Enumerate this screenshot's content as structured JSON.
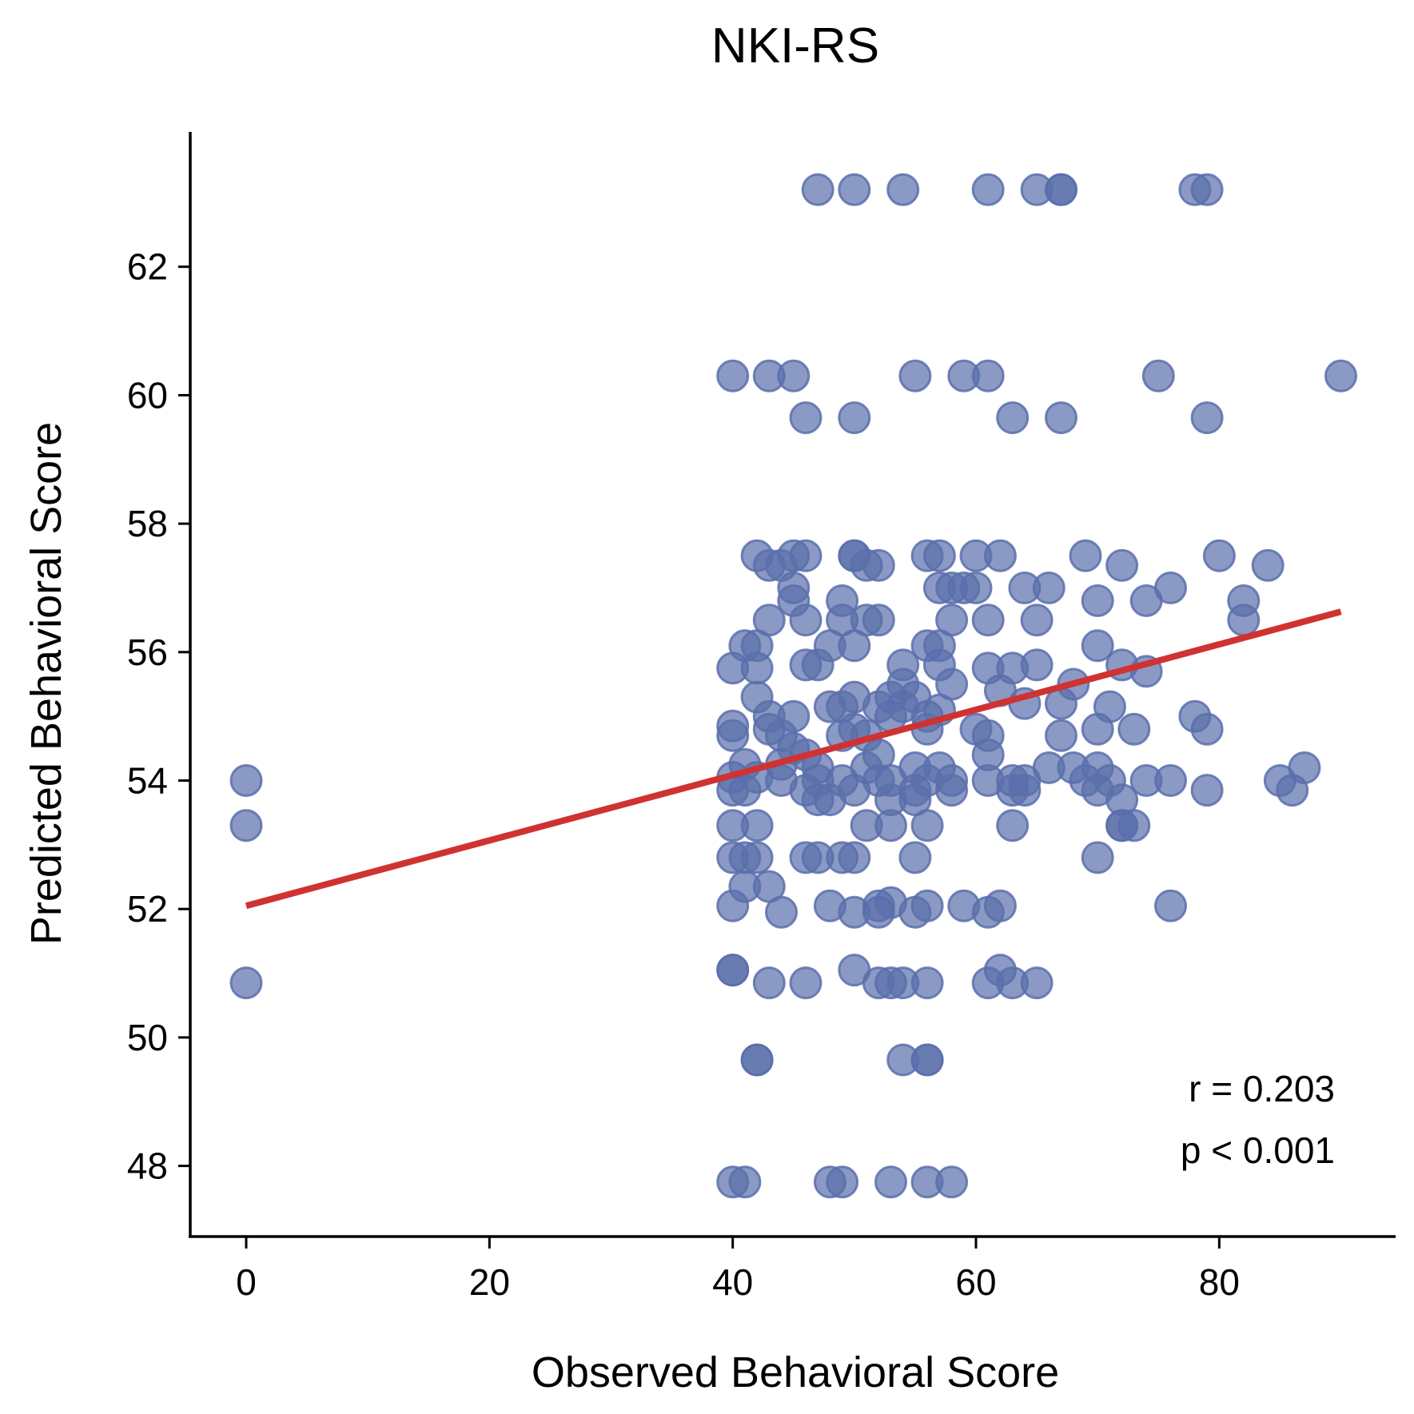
{
  "chart_data": {
    "type": "scatter",
    "title": "NKI-RS",
    "xlabel": "Observed Behavioral Score",
    "ylabel": "Predicted Behavioral Score",
    "xlim": [
      -4.6,
      94.5
    ],
    "ylim": [
      46.9,
      64.1
    ],
    "xticks": [
      0,
      20,
      40,
      60,
      80
    ],
    "yticks": [
      48,
      50,
      52,
      54,
      56,
      58,
      60,
      62
    ],
    "grid": false,
    "legend": "none",
    "colors": {
      "points": "#5a6fab",
      "fit_line": "#d03232",
      "axes": "#000000"
    },
    "annotations": [
      "r = 0.203",
      "p < 0.001"
    ],
    "fit_line": {
      "x": [
        0,
        90
      ],
      "y": [
        52.05,
        56.63
      ]
    },
    "series": [
      {
        "points": [
          [
            0,
            54.0
          ],
          [
            0,
            53.3
          ],
          [
            0,
            50.85
          ],
          [
            47,
            63.2
          ],
          [
            50,
            63.2
          ],
          [
            54,
            63.2
          ],
          [
            61,
            63.2
          ],
          [
            65,
            63.2
          ],
          [
            67,
            63.2
          ],
          [
            67,
            63.2
          ],
          [
            78,
            63.2
          ],
          [
            79,
            63.2
          ],
          [
            40,
            60.3
          ],
          [
            43,
            60.3
          ],
          [
            45,
            60.3
          ],
          [
            55,
            60.3
          ],
          [
            59,
            60.3
          ],
          [
            61,
            60.3
          ],
          [
            75,
            60.3
          ],
          [
            90,
            60.3
          ],
          [
            46,
            59.65
          ],
          [
            50,
            59.65
          ],
          [
            63,
            59.65
          ],
          [
            67,
            59.65
          ],
          [
            79,
            59.65
          ],
          [
            42,
            57.5
          ],
          [
            45,
            57.5
          ],
          [
            46,
            57.5
          ],
          [
            50,
            57.5
          ],
          [
            50,
            57.5
          ],
          [
            56,
            57.5
          ],
          [
            57,
            57.5
          ],
          [
            60,
            57.5
          ],
          [
            62,
            57.5
          ],
          [
            69,
            57.5
          ],
          [
            80,
            57.5
          ],
          [
            43,
            57.35
          ],
          [
            44,
            57.35
          ],
          [
            51,
            57.35
          ],
          [
            52,
            57.35
          ],
          [
            72,
            57.35
          ],
          [
            84,
            57.35
          ],
          [
            45,
            57.0
          ],
          [
            57,
            57.0
          ],
          [
            58,
            57.0
          ],
          [
            59,
            57.0
          ],
          [
            60,
            57.0
          ],
          [
            64,
            57.0
          ],
          [
            66,
            57.0
          ],
          [
            76,
            57.0
          ],
          [
            45,
            56.8
          ],
          [
            49,
            56.8
          ],
          [
            70,
            56.8
          ],
          [
            74,
            56.8
          ],
          [
            82,
            56.8
          ],
          [
            43,
            56.5
          ],
          [
            46,
            56.5
          ],
          [
            49,
            56.5
          ],
          [
            51,
            56.5
          ],
          [
            52,
            56.5
          ],
          [
            58,
            56.5
          ],
          [
            61,
            56.5
          ],
          [
            65,
            56.5
          ],
          [
            82,
            56.5
          ],
          [
            41,
            56.1
          ],
          [
            42,
            56.1
          ],
          [
            48,
            56.1
          ],
          [
            50,
            56.1
          ],
          [
            56,
            56.1
          ],
          [
            57,
            56.1
          ],
          [
            70,
            56.1
          ],
          [
            40,
            55.75
          ],
          [
            42,
            55.75
          ],
          [
            46,
            55.8
          ],
          [
            47,
            55.8
          ],
          [
            54,
            55.8
          ],
          [
            57,
            55.8
          ],
          [
            61,
            55.75
          ],
          [
            63,
            55.75
          ],
          [
            65,
            55.8
          ],
          [
            72,
            55.8
          ],
          [
            74,
            55.7
          ],
          [
            54,
            55.5
          ],
          [
            58,
            55.5
          ],
          [
            62,
            55.4
          ],
          [
            68,
            55.5
          ],
          [
            42,
            55.3
          ],
          [
            50,
            55.3
          ],
          [
            53,
            55.3
          ],
          [
            55,
            55.3
          ],
          [
            48,
            55.15
          ],
          [
            49,
            55.15
          ],
          [
            52,
            55.15
          ],
          [
            54,
            55.15
          ],
          [
            57,
            55.1
          ],
          [
            64,
            55.2
          ],
          [
            67,
            55.2
          ],
          [
            71,
            55.15
          ],
          [
            43,
            55.0
          ],
          [
            45,
            55.0
          ],
          [
            53,
            55.0
          ],
          [
            56,
            55.0
          ],
          [
            78,
            55.0
          ],
          [
            40,
            54.85
          ],
          [
            43,
            54.8
          ],
          [
            50,
            54.8
          ],
          [
            56,
            54.8
          ],
          [
            60,
            54.8
          ],
          [
            70,
            54.8
          ],
          [
            73,
            54.8
          ],
          [
            79,
            54.8
          ],
          [
            40,
            54.7
          ],
          [
            44,
            54.7
          ],
          [
            49,
            54.7
          ],
          [
            51,
            54.7
          ],
          [
            61,
            54.7
          ],
          [
            67,
            54.7
          ],
          [
            45,
            54.5
          ],
          [
            46,
            54.4
          ],
          [
            52,
            54.4
          ],
          [
            61,
            54.4
          ],
          [
            41,
            54.25
          ],
          [
            44,
            54.25
          ],
          [
            47,
            54.2
          ],
          [
            51,
            54.2
          ],
          [
            55,
            54.2
          ],
          [
            57,
            54.2
          ],
          [
            66,
            54.2
          ],
          [
            68,
            54.2
          ],
          [
            70,
            54.2
          ],
          [
            87,
            54.2
          ],
          [
            40,
            54.05
          ],
          [
            42,
            54.05
          ],
          [
            44,
            54.0
          ],
          [
            47,
            54.0
          ],
          [
            49,
            54.0
          ],
          [
            52,
            54.0
          ],
          [
            53,
            54.0
          ],
          [
            56,
            54.0
          ],
          [
            58,
            54.0
          ],
          [
            61,
            54.0
          ],
          [
            63,
            54.0
          ],
          [
            64,
            54.0
          ],
          [
            69,
            54.0
          ],
          [
            71,
            54.0
          ],
          [
            74,
            54.0
          ],
          [
            76,
            54.0
          ],
          [
            85,
            54.0
          ],
          [
            40,
            53.85
          ],
          [
            41,
            53.85
          ],
          [
            46,
            53.85
          ],
          [
            50,
            53.85
          ],
          [
            55,
            53.85
          ],
          [
            58,
            53.85
          ],
          [
            63,
            53.85
          ],
          [
            64,
            53.85
          ],
          [
            70,
            53.85
          ],
          [
            79,
            53.85
          ],
          [
            86,
            53.85
          ],
          [
            47,
            53.7
          ],
          [
            48,
            53.7
          ],
          [
            53,
            53.7
          ],
          [
            55,
            53.7
          ],
          [
            72,
            53.7
          ],
          [
            40,
            53.3
          ],
          [
            42,
            53.3
          ],
          [
            51,
            53.3
          ],
          [
            53,
            53.3
          ],
          [
            56,
            53.3
          ],
          [
            63,
            53.3
          ],
          [
            72,
            53.3
          ],
          [
            72,
            53.3
          ],
          [
            73,
            53.3
          ],
          [
            40,
            52.8
          ],
          [
            41,
            52.8
          ],
          [
            42,
            52.8
          ],
          [
            46,
            52.8
          ],
          [
            47,
            52.8
          ],
          [
            49,
            52.8
          ],
          [
            50,
            52.8
          ],
          [
            55,
            52.8
          ],
          [
            70,
            52.8
          ],
          [
            41,
            52.35
          ],
          [
            43,
            52.35
          ],
          [
            40,
            52.05
          ],
          [
            48,
            52.05
          ],
          [
            52,
            52.05
          ],
          [
            53,
            52.1
          ],
          [
            56,
            52.05
          ],
          [
            59,
            52.05
          ],
          [
            62,
            52.05
          ],
          [
            76,
            52.05
          ],
          [
            44,
            51.95
          ],
          [
            50,
            51.95
          ],
          [
            52,
            51.95
          ],
          [
            55,
            51.95
          ],
          [
            61,
            51.95
          ],
          [
            40,
            51.05
          ],
          [
            40,
            51.05
          ],
          [
            50,
            51.05
          ],
          [
            62,
            51.05
          ],
          [
            43,
            50.85
          ],
          [
            46,
            50.85
          ],
          [
            52,
            50.85
          ],
          [
            53,
            50.85
          ],
          [
            54,
            50.85
          ],
          [
            56,
            50.85
          ],
          [
            61,
            50.85
          ],
          [
            63,
            50.85
          ],
          [
            65,
            50.85
          ],
          [
            42,
            49.65
          ],
          [
            42,
            49.65
          ],
          [
            54,
            49.65
          ],
          [
            56,
            49.65
          ],
          [
            56,
            49.65
          ],
          [
            40,
            47.75
          ],
          [
            41,
            47.75
          ],
          [
            48,
            47.75
          ],
          [
            49,
            47.75
          ],
          [
            53,
            47.75
          ],
          [
            56,
            47.75
          ],
          [
            58,
            47.75
          ]
        ]
      }
    ]
  }
}
